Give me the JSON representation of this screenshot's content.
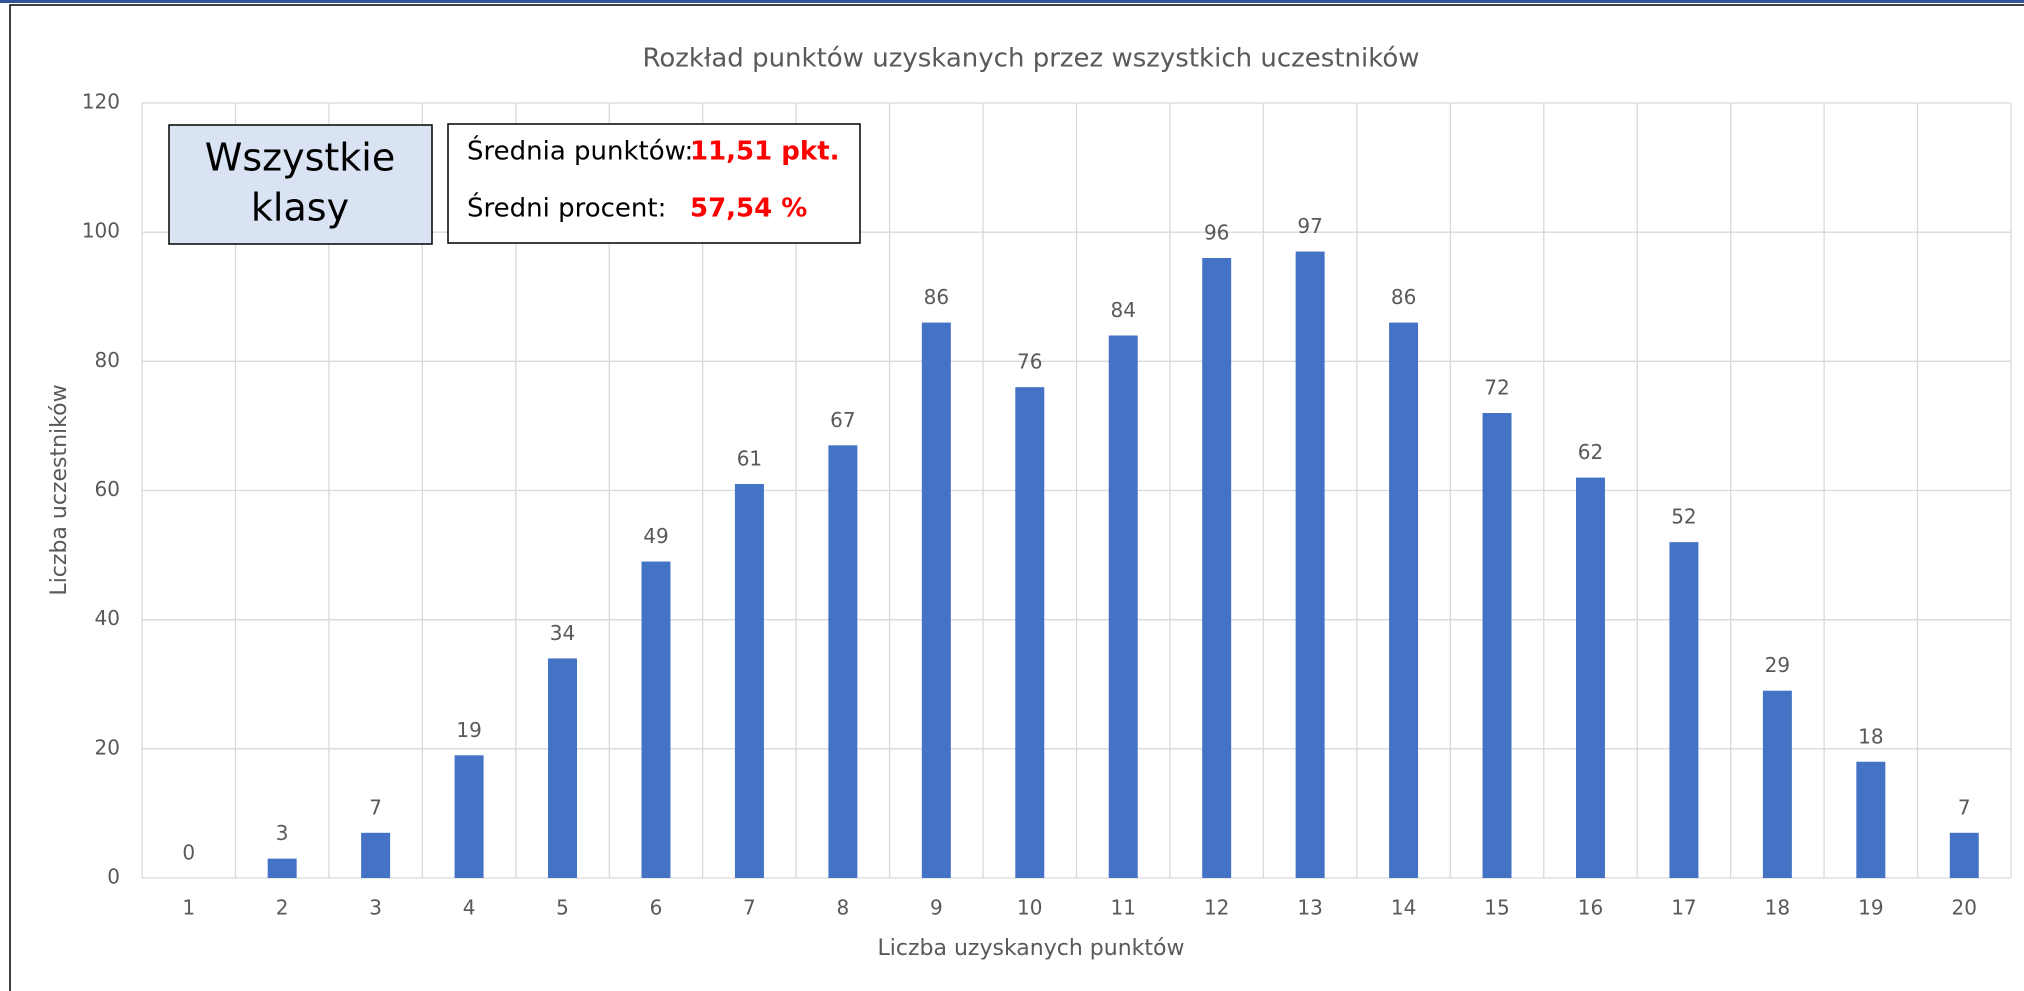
{
  "chart_data": {
    "type": "bar",
    "title": "Rozkład punktów uzyskanych przez wszystkich uczestników",
    "x_label": "Liczba uzyskanych punktów",
    "y_label": "Liczba uczestników",
    "categories": [
      "1",
      "2",
      "3",
      "4",
      "5",
      "6",
      "7",
      "8",
      "9",
      "10",
      "11",
      "12",
      "13",
      "14",
      "15",
      "16",
      "17",
      "18",
      "19",
      "20"
    ],
    "values": [
      0,
      3,
      7,
      19,
      34,
      49,
      61,
      67,
      86,
      76,
      84,
      96,
      97,
      86,
      72,
      62,
      52,
      29,
      18,
      7
    ],
    "color": "#4472c4",
    "ylim": [
      0,
      120
    ],
    "yticks": [
      0,
      20,
      40,
      60,
      80,
      100,
      120
    ],
    "grid": true,
    "group_box": {
      "lines": [
        "Wszystkie",
        "klasy"
      ]
    },
    "stats_box": [
      {
        "label": "Średnia punktów:",
        "value": "11,51 pkt."
      },
      {
        "label": "Średni procent:",
        "value": "57,54 %"
      }
    ]
  }
}
